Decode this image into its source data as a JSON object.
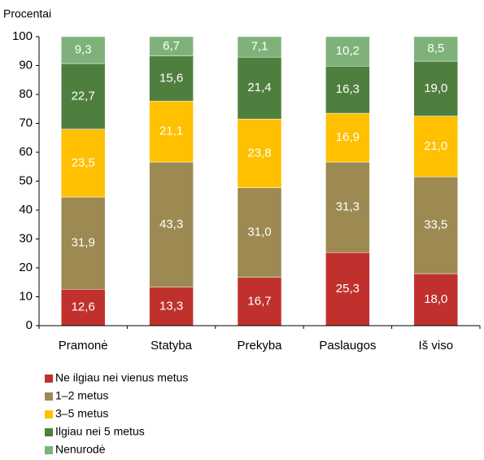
{
  "chart_data": {
    "type": "stacked_bar",
    "ylabel": "Procentai",
    "categories": [
      "Pramonė",
      "Statyba",
      "Prekyba",
      "Paslaugos",
      "Iš viso"
    ],
    "series": [
      {
        "name": "Ne ilgiau nei vienus metus",
        "color": "#c0312e",
        "values": [
          12.6,
          13.3,
          16.7,
          25.3,
          18.0
        ],
        "value_labels": [
          "12,6",
          "13,3",
          "16,7",
          "25,3",
          "18,0"
        ]
      },
      {
        "name": "1–2 metus",
        "color": "#9c8a52",
        "values": [
          31.9,
          43.3,
          31.0,
          31.3,
          33.5
        ],
        "value_labels": [
          "31,9",
          "43,3",
          "31,0",
          "31,3",
          "33,5"
        ]
      },
      {
        "name": "3–5 metus",
        "color": "#ffc000",
        "values": [
          23.5,
          21.1,
          23.8,
          16.9,
          21.0
        ],
        "value_labels": [
          "23,5",
          "21,1",
          "23,8",
          "16,9",
          "21,0"
        ]
      },
      {
        "name": "Ilgiau nei 5 metus",
        "color": "#4f7f3f",
        "values": [
          22.7,
          15.6,
          21.4,
          16.3,
          19.0
        ],
        "value_labels": [
          "22,7",
          "15,6",
          "21,4",
          "16,3",
          "19,0"
        ]
      },
      {
        "name": "Nenurodė",
        "color": "#7fb27a",
        "values": [
          9.3,
          6.7,
          7.1,
          10.2,
          8.5
        ],
        "value_labels": [
          "9,3",
          "6,7",
          "7,1",
          "10,2",
          "8,5"
        ]
      }
    ],
    "ylim": [
      0,
      100
    ],
    "yticks": [
      0,
      10,
      20,
      30,
      40,
      50,
      60,
      70,
      80,
      90,
      100
    ],
    "grid": false
  }
}
